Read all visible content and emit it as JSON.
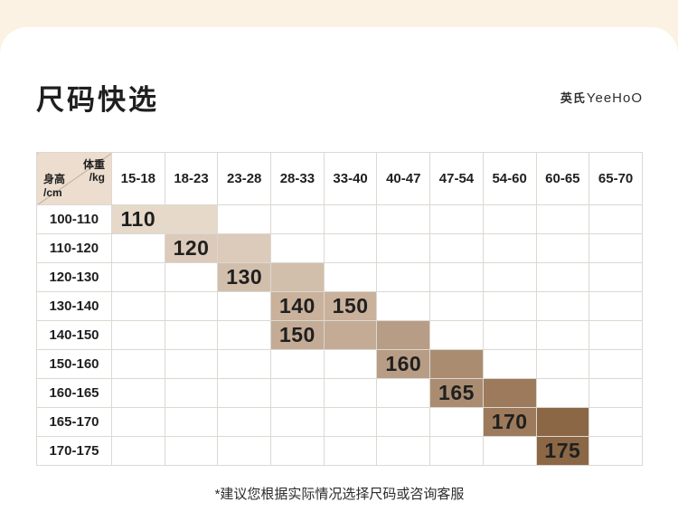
{
  "page": {
    "title": "尺码快选",
    "brand_cn": "英氏",
    "brand_en": "YeeHoO",
    "footnote": "*建议您根据实际情况选择尺码或咨询客服"
  },
  "colors": {
    "page_bg": "#fbf2e3",
    "card_bg": "#ffffff",
    "grid_line": "#dcd8d2",
    "corner_bg": "#ecddce",
    "diagonal_line": "#c4b3a1",
    "text": "#1f1f1f"
  },
  "table": {
    "corner": {
      "weight_label": "体重",
      "weight_unit": "/kg",
      "height_label": "身高",
      "height_unit": "/cm"
    },
    "weight_columns": [
      "15-18",
      "18-23",
      "23-28",
      "28-33",
      "33-40",
      "40-47",
      "47-54",
      "54-60",
      "60-65",
      "65-70"
    ],
    "height_rows": [
      "100-110",
      "110-120",
      "120-130",
      "130-140",
      "140-150",
      "150-160",
      "160-165",
      "165-170",
      "170-175"
    ],
    "cells": [
      {
        "row": 0,
        "col": 0,
        "size": "110",
        "color": "#e6d9ca"
      },
      {
        "row": 0,
        "col": 1,
        "size": "",
        "color": "#e6d9ca"
      },
      {
        "row": 1,
        "col": 1,
        "size": "120",
        "color": "#dccaba"
      },
      {
        "row": 1,
        "col": 2,
        "size": "",
        "color": "#dccaba"
      },
      {
        "row": 2,
        "col": 2,
        "size": "130",
        "color": "#d2bfab"
      },
      {
        "row": 2,
        "col": 3,
        "size": "",
        "color": "#d2bfab"
      },
      {
        "row": 3,
        "col": 3,
        "size": "140",
        "color": "#c9b19c"
      },
      {
        "row": 3,
        "col": 4,
        "size": "150",
        "color": "#c9b19c"
      },
      {
        "row": 4,
        "col": 3,
        "size": "150",
        "color": "#c3ab96"
      },
      {
        "row": 4,
        "col": 4,
        "size": "",
        "color": "#c3ab96"
      },
      {
        "row": 4,
        "col": 5,
        "size": "",
        "color": "#b79d85"
      },
      {
        "row": 5,
        "col": 5,
        "size": "160",
        "color": "#b79d85"
      },
      {
        "row": 5,
        "col": 6,
        "size": "",
        "color": "#aa8d71"
      },
      {
        "row": 6,
        "col": 6,
        "size": "165",
        "color": "#aa8d71"
      },
      {
        "row": 6,
        "col": 7,
        "size": "",
        "color": "#9c7a5b"
      },
      {
        "row": 7,
        "col": 7,
        "size": "170",
        "color": "#9c7a5b"
      },
      {
        "row": 7,
        "col": 8,
        "size": "",
        "color": "#8b6746"
      },
      {
        "row": 8,
        "col": 8,
        "size": "175",
        "color": "#8b6746"
      }
    ]
  },
  "chart_data": {
    "type": "table",
    "title": "尺码快选",
    "col_axis_label": "体重/kg",
    "row_axis_label": "身高/cm",
    "columns": [
      "15-18",
      "18-23",
      "23-28",
      "28-33",
      "33-40",
      "40-47",
      "47-54",
      "54-60",
      "60-65",
      "65-70"
    ],
    "rows": [
      "100-110",
      "110-120",
      "120-130",
      "130-140",
      "140-150",
      "150-160",
      "160-165",
      "165-170",
      "170-175"
    ],
    "size_placements": [
      {
        "size": "110",
        "height_cm": "100-110",
        "weight_kg": "15-18"
      },
      {
        "size": "120",
        "height_cm": "110-120",
        "weight_kg": "18-23"
      },
      {
        "size": "130",
        "height_cm": "120-130",
        "weight_kg": "23-28"
      },
      {
        "size": "140",
        "height_cm": "130-140",
        "weight_kg": "28-33"
      },
      {
        "size": "150",
        "height_cm": "130-140",
        "weight_kg": "33-40"
      },
      {
        "size": "150",
        "height_cm": "140-150",
        "weight_kg": "28-33"
      },
      {
        "size": "160",
        "height_cm": "150-160",
        "weight_kg": "40-47"
      },
      {
        "size": "165",
        "height_cm": "160-165",
        "weight_kg": "47-54"
      },
      {
        "size": "170",
        "height_cm": "165-170",
        "weight_kg": "54-60"
      },
      {
        "size": "175",
        "height_cm": "170-175",
        "weight_kg": "60-65"
      }
    ],
    "note": "*建议您根据实际情况选择尺码或咨询客服"
  }
}
